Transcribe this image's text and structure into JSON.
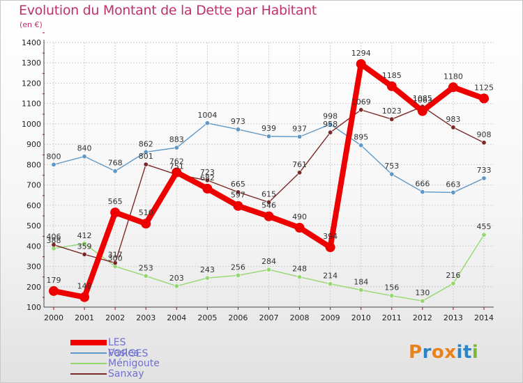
{
  "title": "Evolution du Montant de la Dette par Habitant",
  "subtitle": "(en €)",
  "logo": {
    "text": "Proxiti",
    "colors": [
      "#e8821e",
      "#2a84c6",
      "#e8821e",
      "#e8821e",
      "#2a84c6",
      "#2a84c6",
      "#7bb83a"
    ]
  },
  "chart_data": {
    "type": "line",
    "title": "Evolution du Montant de la Dette par Habitant",
    "ylabel": "(en €)",
    "x": [
      "2000",
      "2001",
      "2002",
      "2003",
      "2004",
      "2005",
      "2006",
      "2007",
      "2008",
      "2009",
      "2010",
      "2011",
      "2012",
      "2013",
      "2014"
    ],
    "ylim": [
      100,
      1400
    ],
    "yticks": [
      "100",
      "200",
      "300",
      "400",
      "500",
      "600",
      "700",
      "800",
      "900",
      "1000",
      "1100",
      "1200",
      "1300",
      "1400"
    ],
    "grid": true,
    "legend_position": "bottom-left",
    "series": [
      {
        "name": "LES FORGES",
        "color": "#ee0000",
        "values": [
          179,
          149,
          565,
          510,
          762,
          682,
          597,
          546,
          490,
          394,
          1294,
          1185,
          1063,
          1180,
          1125
        ]
      },
      {
        "name": "Vasles",
        "color": "#5e98c8",
        "values": [
          800,
          840,
          768,
          862,
          883,
          1004,
          973,
          939,
          937,
          998,
          895,
          753,
          666,
          663,
          733
        ]
      },
      {
        "name": "Ménigoute",
        "color": "#94d86e",
        "values": [
          388,
          412,
          300,
          253,
          203,
          243,
          256,
          284,
          248,
          214,
          184,
          156,
          130,
          216,
          455
        ]
      },
      {
        "name": "Sanxay",
        "color": "#7c2828",
        "values": [
          406,
          359,
          317,
          801,
          751,
          723,
          665,
          615,
          761,
          958,
          1069,
          1023,
          1085,
          983,
          908
        ]
      }
    ]
  }
}
